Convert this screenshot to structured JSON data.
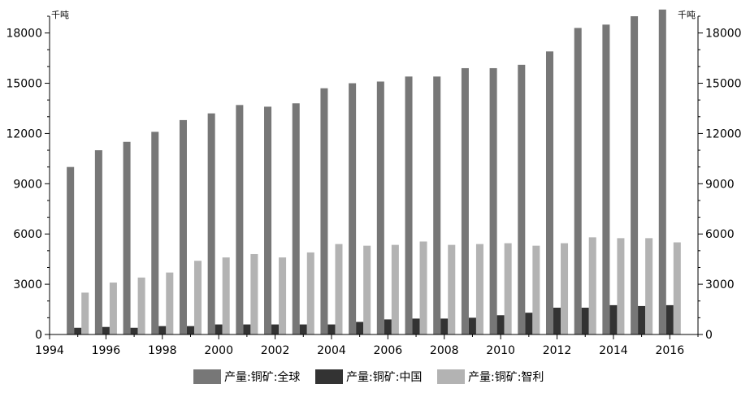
{
  "chart_data": {
    "type": "bar",
    "title": "",
    "xlabel": "",
    "ylabel": "",
    "y_unit_left": "千吨",
    "y_unit_right": "千吨",
    "x_tick_labels": [
      "1994",
      "1996",
      "1998",
      "2000",
      "2002",
      "2004",
      "2006",
      "2008",
      "2010",
      "2012",
      "2014",
      "2016"
    ],
    "xlim": [
      1994,
      2017
    ],
    "ylim": [
      0,
      19000
    ],
    "y_ticks": [
      0,
      3000,
      6000,
      9000,
      12000,
      15000,
      18000
    ],
    "y_tick_labels": [
      "0",
      "3000",
      "6000",
      "9000",
      "12000",
      "15000",
      "18000"
    ],
    "grid": false,
    "legend_position": "bottom",
    "categories": [
      "1995",
      "1996",
      "1997",
      "1998",
      "1999",
      "2000",
      "2001",
      "2002",
      "2003",
      "2004",
      "2005",
      "2006",
      "2007",
      "2008",
      "2009",
      "2010",
      "2011",
      "2012",
      "2013",
      "2014",
      "2015",
      "2016"
    ],
    "series": [
      {
        "name": "产量:铜矿:全球",
        "color": "#777777",
        "values": [
          10000,
          11000,
          11500,
          12100,
          12800,
          13200,
          13700,
          13600,
          13800,
          14700,
          15000,
          15100,
          15400,
          15400,
          15900,
          15900,
          16100,
          16900,
          18300,
          18500,
          19000,
          19400
        ]
      },
      {
        "name": "产量:铜矿:中国",
        "color": "#333333",
        "values": [
          400,
          450,
          400,
          500,
          500,
          600,
          600,
          600,
          600,
          600,
          750,
          900,
          950,
          950,
          1000,
          1150,
          1300,
          1600,
          1600,
          1750,
          1700,
          1750
        ]
      },
      {
        "name": "产量:铜矿:智利",
        "color": "#b3b3b3",
        "values": [
          2500,
          3100,
          3400,
          3700,
          4400,
          4600,
          4800,
          4600,
          4900,
          5400,
          5300,
          5350,
          5550,
          5350,
          5400,
          5450,
          5300,
          5450,
          5800,
          5750,
          5750,
          5500
        ]
      }
    ]
  }
}
